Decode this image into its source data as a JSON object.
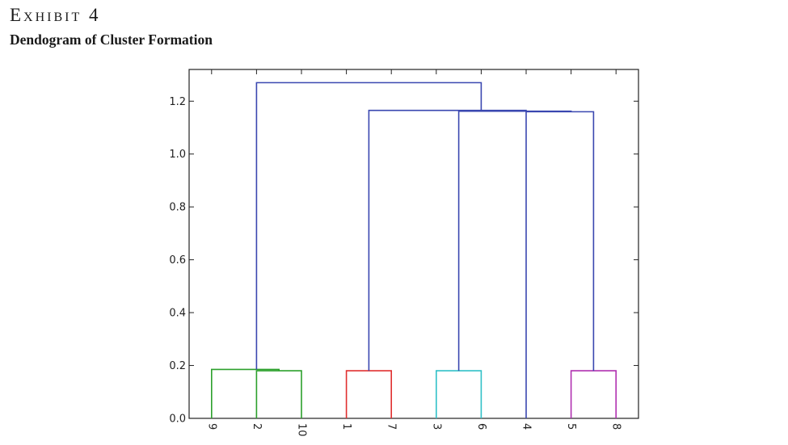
{
  "header": {
    "exhibit_label": "Exhibit 4",
    "title": "Dendogram of Cluster Formation"
  },
  "chart_data": {
    "type": "dendrogram",
    "ylim": [
      0,
      1.32
    ],
    "yticks": [
      0.0,
      0.2,
      0.4,
      0.6,
      0.8,
      1.0,
      1.2
    ],
    "ytick_labels": [
      "0.0",
      "0.2",
      "0.4",
      "0.6",
      "0.8",
      "1.0",
      "1.2"
    ],
    "leaves": [
      "9",
      "2",
      "10",
      "1",
      "7",
      "3",
      "6",
      "4",
      "5",
      "8"
    ],
    "colors": {
      "green": "#2ca02c",
      "red": "#e03030",
      "cyan": "#30c0c8",
      "magenta": "#b030b0",
      "blue": "#3a47b0"
    },
    "links": [
      {
        "left": [
          "2"
        ],
        "right": [
          "10"
        ],
        "height": 0.18,
        "color": "green"
      },
      {
        "left": [
          "9"
        ],
        "right": [
          "2",
          "10"
        ],
        "height": 0.185,
        "color": "green"
      },
      {
        "left": [
          "1"
        ],
        "right": [
          "7"
        ],
        "height": 0.18,
        "color": "red"
      },
      {
        "left": [
          "3"
        ],
        "right": [
          "6"
        ],
        "height": 0.18,
        "color": "cyan"
      },
      {
        "left": [
          "5"
        ],
        "right": [
          "8"
        ],
        "height": 0.18,
        "color": "magenta"
      },
      {
        "left": [
          "4"
        ],
        "right": [
          "5",
          "8"
        ],
        "height": 1.16,
        "color": "blue"
      },
      {
        "left": [
          "3",
          "6"
        ],
        "right": [
          "4",
          "5",
          "8"
        ],
        "height": 1.162,
        "color": "blue"
      },
      {
        "left": [
          "1",
          "7"
        ],
        "right": [
          "3",
          "6",
          "4",
          "5",
          "8"
        ],
        "height": 1.165,
        "color": "blue"
      },
      {
        "left": [
          "9",
          "2",
          "10"
        ],
        "right": [
          "1",
          "7",
          "3",
          "6",
          "4",
          "5",
          "8"
        ],
        "height": 1.27,
        "color": "blue"
      }
    ]
  }
}
